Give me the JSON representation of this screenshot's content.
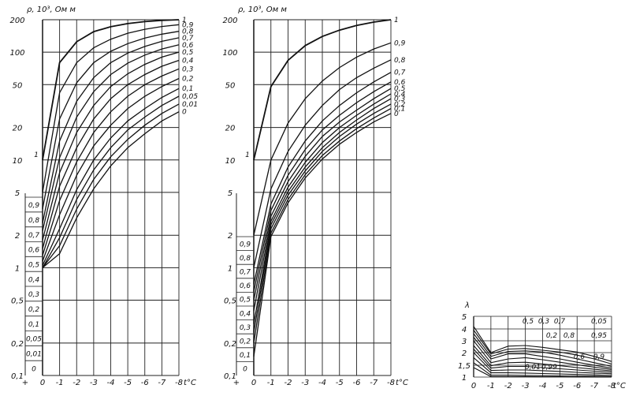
{
  "chart_data": [
    {
      "type": "line",
      "title": "",
      "ylabel": "ρ, 10³, Ом м",
      "xlabel": "t°C",
      "y_scale": "log",
      "ylim": [
        0.1,
        200
      ],
      "xlim": [
        0,
        -8
      ],
      "x_ticks": [
        "+",
        "0",
        "-1",
        "-2",
        "-3",
        "-4",
        "-5",
        "-6",
        "-7",
        "-8"
      ],
      "y_ticks": [
        "0,1",
        "0,2",
        "0,5",
        "1",
        "2",
        "5",
        "10",
        "20",
        "50",
        "100",
        "200"
      ],
      "series": [
        {
          "name": "1",
          "x": [
            0,
            -1,
            -2,
            -3,
            -4,
            -5,
            -6,
            -7,
            -8
          ],
          "y": [
            10,
            80,
            125,
            155,
            172,
            184,
            192,
            197,
            200
          ]
        },
        {
          "name": "0,9",
          "x": [
            0,
            -1,
            -2,
            -3,
            -4,
            -5,
            -6,
            -7,
            -8
          ],
          "y": [
            5,
            42,
            80,
            110,
            132,
            150,
            163,
            173,
            180
          ]
        },
        {
          "name": "0,8",
          "x": [
            0,
            -1,
            -2,
            -3,
            -4,
            -5,
            -6,
            -7,
            -8
          ],
          "y": [
            3.5,
            24,
            52,
            80,
            102,
            120,
            135,
            147,
            156
          ]
        },
        {
          "name": "0,7",
          "x": [
            0,
            -1,
            -2,
            -3,
            -4,
            -5,
            -6,
            -7,
            -8
          ],
          "y": [
            2.6,
            15,
            35,
            58,
            80,
            98,
            113,
            126,
            136
          ]
        },
        {
          "name": "0,6",
          "x": [
            0,
            -1,
            -2,
            -3,
            -4,
            -5,
            -6,
            -7,
            -8
          ],
          "y": [
            2.2,
            10.5,
            25,
            43,
            62,
            79,
            94,
            107,
            117
          ]
        },
        {
          "name": "0,5",
          "x": [
            0,
            -1,
            -2,
            -3,
            -4,
            -5,
            -6,
            -7,
            -8
          ],
          "y": [
            1.8,
            7.6,
            18,
            32,
            48,
            63,
            77,
            90,
            100
          ]
        },
        {
          "name": "0,4",
          "x": [
            0,
            -1,
            -2,
            -3,
            -4,
            -5,
            -6,
            -7,
            -8
          ],
          "y": [
            1.5,
            5.7,
            13,
            24,
            37,
            50,
            62,
            74,
            84
          ]
        },
        {
          "name": "0,3",
          "x": [
            0,
            -1,
            -2,
            -3,
            -4,
            -5,
            -6,
            -7,
            -8
          ],
          "y": [
            1.3,
            4.2,
            9.6,
            18,
            28,
            39,
            50,
            60,
            70
          ]
        },
        {
          "name": "0,2",
          "x": [
            0,
            -1,
            -2,
            -3,
            -4,
            -5,
            -6,
            -7,
            -8
          ],
          "y": [
            1.15,
            3.1,
            7.2,
            13.5,
            21,
            30,
            39,
            48,
            57
          ]
        },
        {
          "name": "0,1",
          "x": [
            0,
            -1,
            -2,
            -3,
            -4,
            -5,
            -6,
            -7,
            -8
          ],
          "y": [
            1.05,
            2.3,
            5.3,
            10,
            16,
            23,
            30,
            38,
            46
          ]
        },
        {
          "name": "0,05",
          "x": [
            0,
            -1,
            -2,
            -3,
            -4,
            -5,
            -6,
            -7,
            -8
          ],
          "y": [
            1.0,
            1.9,
            4.3,
            8.1,
            13,
            19,
            25,
            32,
            39
          ]
        },
        {
          "name": "0,01",
          "x": [
            0,
            -1,
            -2,
            -3,
            -4,
            -5,
            -6,
            -7,
            -8
          ],
          "y": [
            1.0,
            1.6,
            3.5,
            6.6,
            10.7,
            15.5,
            21,
            27,
            33
          ]
        },
        {
          "name": "0",
          "x": [
            0,
            -1,
            -2,
            -3,
            -4,
            -5,
            -6,
            -7,
            -8
          ],
          "y": [
            1.0,
            1.35,
            2.9,
            5.4,
            8.8,
            13,
            17.5,
            23,
            28
          ]
        }
      ],
      "left_scale_labels": [
        "0,9",
        "0,8",
        "0,7",
        "0,6",
        "0,5",
        "0,4",
        "0,3",
        "0,2",
        "0,1",
        "0,05",
        "0,01",
        "0"
      ],
      "annotations": [
        "1"
      ]
    },
    {
      "type": "line",
      "title": "",
      "ylabel": "ρ, 10³, Ом м",
      "xlabel": "t°C",
      "y_scale": "log",
      "ylim": [
        0.1,
        200
      ],
      "xlim": [
        0,
        -8
      ],
      "x_ticks": [
        "+",
        "0",
        "-1",
        "-2",
        "-3",
        "-4",
        "-5",
        "-6",
        "-7",
        "-8"
      ],
      "y_ticks": [
        "0,1",
        "0,2",
        "0,5",
        "1",
        "2",
        "5",
        "10",
        "20",
        "50",
        "100",
        "200"
      ],
      "series": [
        {
          "name": "1",
          "x": [
            0,
            -1,
            -2,
            -3,
            -4,
            -5,
            -6,
            -7,
            -8
          ],
          "y": [
            10,
            48,
            84,
            115,
            140,
            160,
            177,
            190,
            200
          ]
        },
        {
          "name": "0,9",
          "x": [
            0,
            -1,
            -2,
            -3,
            -4,
            -5,
            -6,
            -7,
            -8
          ],
          "y": [
            2,
            10,
            22,
            37,
            54,
            72,
            90,
            107,
            122
          ]
        },
        {
          "name": "0,8",
          "x": [
            0,
            -1,
            -2,
            -3,
            -4,
            -5,
            -6,
            -7,
            -8
          ],
          "y": [
            1,
            5.4,
            12,
            21,
            32,
            45,
            58,
            71,
            85
          ]
        },
        {
          "name": "0,7",
          "x": [
            0,
            -1,
            -2,
            -3,
            -4,
            -5,
            -6,
            -7,
            -8
          ],
          "y": [
            0.7,
            3.9,
            8.6,
            15,
            23,
            32,
            42,
            53,
            65
          ]
        },
        {
          "name": "0,6",
          "x": [
            0,
            -1,
            -2,
            -3,
            -4,
            -5,
            -6,
            -7,
            -8
          ],
          "y": [
            0.6,
            3.4,
            7.2,
            12.5,
            19,
            26,
            34,
            43,
            53
          ]
        },
        {
          "name": "0,5",
          "x": [
            0,
            -1,
            -2,
            -3,
            -4,
            -5,
            -6,
            -7,
            -8
          ],
          "y": [
            0.5,
            3.0,
            6.3,
            10.8,
            16.5,
            22.5,
            29,
            37,
            46
          ]
        },
        {
          "name": "0,4",
          "x": [
            0,
            -1,
            -2,
            -3,
            -4,
            -5,
            -6,
            -7,
            -8
          ],
          "y": [
            0.4,
            2.7,
            5.6,
            9.5,
            14.5,
            20,
            26,
            33,
            41
          ]
        },
        {
          "name": "0,3",
          "x": [
            0,
            -1,
            -2,
            -3,
            -4,
            -5,
            -6,
            -7,
            -8
          ],
          "y": [
            0.3,
            2.5,
            5.1,
            8.6,
            13,
            18,
            23.5,
            30,
            37
          ]
        },
        {
          "name": "0,2",
          "x": [
            0,
            -1,
            -2,
            -3,
            -4,
            -5,
            -6,
            -7,
            -8
          ],
          "y": [
            0.25,
            2.3,
            4.7,
            7.9,
            12,
            16.5,
            21.5,
            27,
            33
          ]
        },
        {
          "name": "0,1",
          "x": [
            0,
            -1,
            -2,
            -3,
            -4,
            -5,
            -6,
            -7,
            -8
          ],
          "y": [
            0.2,
            2.1,
            4.3,
            7.3,
            11,
            15,
            19.5,
            24.5,
            30
          ]
        },
        {
          "name": "0",
          "x": [
            0,
            -1,
            -2,
            -3,
            -4,
            -5,
            -6,
            -7,
            -8
          ],
          "y": [
            0.15,
            1.95,
            4.0,
            6.8,
            10.2,
            14,
            18,
            22.5,
            27
          ]
        }
      ],
      "left_scale_labels": [
        "0,9",
        "0,8",
        "0,7",
        "0,6",
        "0,5",
        "0,4",
        "0,3",
        "0,2",
        "0,1",
        "0"
      ],
      "annotations": [
        "1"
      ]
    },
    {
      "type": "line",
      "title": "",
      "ylabel": "λ",
      "xlabel": "t°C",
      "ylim": [
        1,
        5
      ],
      "xlim": [
        0,
        -8
      ],
      "x_ticks": [
        "0",
        "-1",
        "-2",
        "-3",
        "-4",
        "-5",
        "-6",
        "-7",
        "-8"
      ],
      "y_ticks": [
        "1",
        "1,5",
        "2",
        "3",
        "4",
        "5"
      ],
      "series": [
        {
          "name": "0,5",
          "x": [
            0,
            -1,
            -2,
            -3,
            -4,
            -5,
            -6,
            -7,
            -8
          ],
          "y": [
            4.2,
            2.0,
            2.55,
            2.6,
            2.45,
            2.25,
            2.05,
            1.85,
            1.65
          ]
        },
        {
          "name": "0,3",
          "x": [
            0,
            -1,
            -2,
            -3,
            -4,
            -5,
            -6,
            -7,
            -8
          ],
          "y": [
            3.9,
            1.95,
            2.3,
            2.35,
            2.2,
            2.05,
            1.9,
            1.75,
            1.55
          ]
        },
        {
          "name": "0,7",
          "x": [
            0,
            -1,
            -2,
            -3,
            -4,
            -5,
            -6,
            -7,
            -8
          ],
          "y": [
            3.6,
            1.85,
            2.1,
            2.15,
            2.05,
            1.9,
            1.75,
            1.6,
            1.45
          ]
        },
        {
          "name": "0,05",
          "x": [
            0,
            -1,
            -2,
            -3,
            -4,
            -5,
            -6,
            -7,
            -8
          ],
          "y": [
            3.3,
            1.75,
            1.95,
            1.95,
            1.85,
            1.75,
            1.62,
            1.5,
            1.38
          ]
        },
        {
          "name": "0,2",
          "x": [
            0,
            -1,
            -2,
            -3,
            -4,
            -5,
            -6,
            -7,
            -8
          ],
          "y": [
            3.0,
            1.6,
            1.75,
            1.8,
            1.72,
            1.62,
            1.52,
            1.42,
            1.32
          ]
        },
        {
          "name": "0,8",
          "x": [
            0,
            -1,
            -2,
            -3,
            -4,
            -5,
            -6,
            -7,
            -8
          ],
          "y": [
            2.6,
            1.48,
            1.6,
            1.62,
            1.55,
            1.48,
            1.4,
            1.33,
            1.26
          ]
        },
        {
          "name": "0,95",
          "x": [
            0,
            -1,
            -2,
            -3,
            -4,
            -5,
            -6,
            -7,
            -8
          ],
          "y": [
            2.3,
            1.38,
            1.45,
            1.45,
            1.4,
            1.35,
            1.3,
            1.25,
            1.2
          ]
        },
        {
          "name": "0,6",
          "x": [
            0,
            -1,
            -2,
            -3,
            -4,
            -5,
            -6,
            -7,
            -8
          ],
          "y": [
            2.0,
            1.28,
            1.3,
            1.3,
            1.27,
            1.24,
            1.2,
            1.17,
            1.14
          ]
        },
        {
          "name": "0,9",
          "x": [
            0,
            -1,
            -2,
            -3,
            -4,
            -5,
            -6,
            -7,
            -8
          ],
          "y": [
            1.8,
            1.18,
            1.18,
            1.17,
            1.15,
            1.13,
            1.11,
            1.09,
            1.07
          ]
        },
        {
          "name": "0,01",
          "x": [
            0,
            -1,
            -2,
            -3,
            -4,
            -5,
            -6,
            -7,
            -8
          ],
          "y": [
            1.6,
            1.08,
            1.08,
            1.07,
            1.06,
            1.05,
            1.04,
            1.03,
            1.02
          ]
        },
        {
          "name": "0,99",
          "x": [
            0,
            -1,
            -2,
            -3,
            -4,
            -5,
            -6,
            -7,
            -8
          ],
          "y": [
            1.4,
            1.02,
            1.02,
            1.02,
            1.01,
            1.01,
            1.0,
            1.0,
            1.0
          ]
        }
      ]
    }
  ]
}
